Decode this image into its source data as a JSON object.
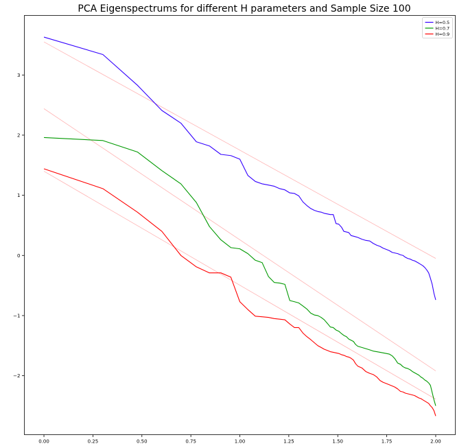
{
  "chart_data": {
    "type": "line",
    "title": "PCA Eigenspectrums for different H parameters and Sample Size 100",
    "xlabel": "",
    "ylabel": "",
    "xlim": [
      -0.1,
      2.1
    ],
    "ylim": [
      -2.98,
      3.99
    ],
    "x_ticks": [
      0.0,
      0.25,
      0.5,
      0.75,
      1.0,
      1.25,
      1.5,
      1.75,
      2.0
    ],
    "x_tick_labels": [
      "0.00",
      "0.25",
      "0.50",
      "0.75",
      "1.00",
      "1.25",
      "1.50",
      "1.75",
      "2.00"
    ],
    "y_ticks": [
      -2,
      -1,
      0,
      1,
      2,
      3
    ],
    "y_tick_labels": [
      "−2",
      "−1",
      "0",
      "1",
      "2",
      "3"
    ],
    "legend_position": "top-right",
    "grid": false,
    "series": [
      {
        "name": "H=0.5",
        "color": "#3300ff",
        "x": [
          0,
          0.301,
          0.477,
          0.602,
          0.699,
          0.778,
          0.845,
          0.903,
          0.954,
          1.0,
          1.041,
          1.079,
          1.114,
          1.146,
          1.176,
          1.204,
          1.23,
          1.255,
          1.279,
          1.301,
          1.322,
          1.342,
          1.362,
          1.38,
          1.398,
          1.415,
          1.431,
          1.447,
          1.462,
          1.477,
          1.491,
          1.505,
          1.519,
          1.531,
          1.544,
          1.556,
          1.568,
          1.58,
          1.591,
          1.602,
          1.623,
          1.643,
          1.663,
          1.681,
          1.699,
          1.716,
          1.732,
          1.748,
          1.763,
          1.778,
          1.792,
          1.806,
          1.82,
          1.833,
          1.845,
          1.857,
          1.869,
          1.881,
          1.892,
          1.903,
          1.914,
          1.924,
          1.934,
          1.944,
          1.954,
          1.964,
          1.973,
          1.982,
          1.991,
          2.0
        ],
        "y": [
          3.63,
          3.34,
          2.83,
          2.41,
          2.2,
          1.89,
          1.82,
          1.68,
          1.66,
          1.6,
          1.33,
          1.23,
          1.19,
          1.17,
          1.15,
          1.11,
          1.09,
          1.04,
          1.03,
          0.99,
          0.89,
          0.83,
          0.78,
          0.75,
          0.73,
          0.72,
          0.7,
          0.69,
          0.68,
          0.68,
          0.53,
          0.52,
          0.47,
          0.4,
          0.39,
          0.38,
          0.33,
          0.32,
          0.31,
          0.3,
          0.27,
          0.25,
          0.24,
          0.2,
          0.17,
          0.15,
          0.12,
          0.1,
          0.08,
          0.05,
          0.04,
          0.03,
          0.01,
          0.0,
          -0.03,
          -0.05,
          -0.06,
          -0.08,
          -0.09,
          -0.11,
          -0.13,
          -0.15,
          -0.17,
          -0.2,
          -0.24,
          -0.29,
          -0.38,
          -0.48,
          -0.63,
          -0.74
        ]
      },
      {
        "name": "H=0.7",
        "color": "#009900",
        "x": [
          0,
          0.301,
          0.477,
          0.602,
          0.699,
          0.778,
          0.845,
          0.903,
          0.954,
          1.0,
          1.041,
          1.079,
          1.114,
          1.146,
          1.176,
          1.204,
          1.23,
          1.255,
          1.279,
          1.301,
          1.322,
          1.342,
          1.362,
          1.38,
          1.398,
          1.415,
          1.431,
          1.447,
          1.462,
          1.477,
          1.491,
          1.505,
          1.519,
          1.531,
          1.544,
          1.556,
          1.568,
          1.58,
          1.591,
          1.602,
          1.623,
          1.643,
          1.663,
          1.681,
          1.699,
          1.716,
          1.732,
          1.748,
          1.763,
          1.778,
          1.792,
          1.806,
          1.82,
          1.833,
          1.845,
          1.857,
          1.869,
          1.881,
          1.892,
          1.903,
          1.914,
          1.924,
          1.934,
          1.944,
          1.954,
          1.964,
          1.973,
          1.982,
          1.991,
          2.0
        ],
        "y": [
          1.96,
          1.91,
          1.72,
          1.41,
          1.19,
          0.88,
          0.48,
          0.26,
          0.13,
          0.11,
          0.03,
          -0.08,
          -0.12,
          -0.35,
          -0.45,
          -0.46,
          -0.48,
          -0.75,
          -0.77,
          -0.79,
          -0.84,
          -0.89,
          -0.96,
          -0.99,
          -1.0,
          -1.03,
          -1.07,
          -1.13,
          -1.19,
          -1.2,
          -1.24,
          -1.26,
          -1.3,
          -1.33,
          -1.35,
          -1.39,
          -1.41,
          -1.43,
          -1.48,
          -1.51,
          -1.53,
          -1.55,
          -1.57,
          -1.59,
          -1.6,
          -1.61,
          -1.62,
          -1.63,
          -1.64,
          -1.67,
          -1.72,
          -1.79,
          -1.81,
          -1.85,
          -1.87,
          -1.88,
          -1.9,
          -1.93,
          -1.95,
          -1.97,
          -1.99,
          -2.02,
          -2.04,
          -2.07,
          -2.09,
          -2.12,
          -2.16,
          -2.28,
          -2.4,
          -2.5
        ]
      },
      {
        "name": "H=0.9",
        "color": "#ff0000",
        "x": [
          0,
          0.301,
          0.477,
          0.602,
          0.699,
          0.778,
          0.845,
          0.903,
          0.954,
          1.0,
          1.041,
          1.079,
          1.114,
          1.146,
          1.176,
          1.204,
          1.23,
          1.255,
          1.279,
          1.301,
          1.322,
          1.342,
          1.362,
          1.38,
          1.398,
          1.415,
          1.431,
          1.447,
          1.462,
          1.477,
          1.491,
          1.505,
          1.519,
          1.531,
          1.544,
          1.556,
          1.568,
          1.58,
          1.591,
          1.602,
          1.623,
          1.643,
          1.663,
          1.681,
          1.699,
          1.716,
          1.732,
          1.748,
          1.763,
          1.778,
          1.792,
          1.806,
          1.82,
          1.833,
          1.845,
          1.857,
          1.869,
          1.881,
          1.892,
          1.903,
          1.914,
          1.924,
          1.934,
          1.944,
          1.954,
          1.964,
          1.973,
          1.982,
          1.991,
          2.0
        ],
        "y": [
          1.44,
          1.11,
          0.72,
          0.4,
          0.0,
          -0.19,
          -0.29,
          -0.29,
          -0.36,
          -0.77,
          -0.9,
          -1.01,
          -1.02,
          -1.03,
          -1.05,
          -1.06,
          -1.07,
          -1.14,
          -1.2,
          -1.2,
          -1.29,
          -1.35,
          -1.4,
          -1.45,
          -1.5,
          -1.53,
          -1.56,
          -1.58,
          -1.6,
          -1.61,
          -1.62,
          -1.63,
          -1.65,
          -1.66,
          -1.68,
          -1.69,
          -1.71,
          -1.74,
          -1.8,
          -1.84,
          -1.87,
          -1.93,
          -1.96,
          -1.98,
          -2.02,
          -2.08,
          -2.11,
          -2.13,
          -2.15,
          -2.17,
          -2.19,
          -2.22,
          -2.26,
          -2.27,
          -2.29,
          -2.3,
          -2.31,
          -2.32,
          -2.33,
          -2.35,
          -2.37,
          -2.38,
          -2.4,
          -2.42,
          -2.44,
          -2.46,
          -2.5,
          -2.53,
          -2.58,
          -2.67
        ]
      }
    ],
    "fit_lines": [
      {
        "color": "#ffb3b3",
        "x": [
          0,
          2.0
        ],
        "y": [
          3.55,
          -0.05
        ]
      },
      {
        "color": "#ffb3b3",
        "x": [
          0,
          2.0
        ],
        "y": [
          2.44,
          -1.92
        ]
      },
      {
        "color": "#ffb3b3",
        "x": [
          0,
          2.0
        ],
        "y": [
          1.4,
          -2.39
        ]
      }
    ]
  }
}
